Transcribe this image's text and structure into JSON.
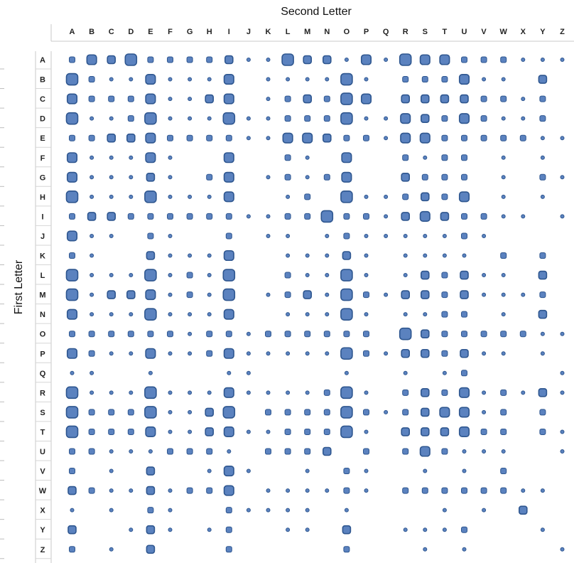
{
  "chart_data": {
    "type": "bubble-matrix",
    "title": "",
    "xlabel": "Second Letter",
    "ylabel": "First Letter",
    "columns": [
      "A",
      "B",
      "C",
      "D",
      "E",
      "F",
      "G",
      "H",
      "I",
      "J",
      "K",
      "L",
      "M",
      "N",
      "O",
      "P",
      "Q",
      "R",
      "S",
      "T",
      "U",
      "V",
      "W",
      "X",
      "Y",
      "Z"
    ],
    "rows": [
      "A",
      "B",
      "C",
      "D",
      "E",
      "F",
      "G",
      "H",
      "I",
      "J",
      "K",
      "L",
      "M",
      "N",
      "O",
      "P",
      "Q",
      "R",
      "S",
      "T",
      "U",
      "V",
      "W",
      "X",
      "Y",
      "Z"
    ],
    "value_scale": "0-5 relative frequency (0 = no marker)",
    "values": [
      [
        2,
        4,
        3,
        5,
        2,
        2,
        2,
        2,
        3,
        1,
        1,
        5,
        3,
        3,
        1,
        4,
        1,
        5,
        4,
        4,
        2,
        2,
        2,
        1,
        1,
        1
      ],
      [
        5,
        2,
        1,
        1,
        4,
        1,
        1,
        1,
        4,
        0,
        1,
        1,
        1,
        1,
        5,
        1,
        0,
        2,
        2,
        2,
        4,
        1,
        1,
        0,
        3,
        0
      ],
      [
        4,
        2,
        2,
        2,
        4,
        1,
        1,
        3,
        4,
        0,
        1,
        2,
        3,
        2,
        5,
        4,
        0,
        3,
        3,
        3,
        3,
        2,
        2,
        1,
        2,
        0
      ],
      [
        5,
        1,
        1,
        2,
        5,
        1,
        1,
        1,
        5,
        1,
        1,
        2,
        2,
        2,
        5,
        1,
        1,
        4,
        3,
        2,
        4,
        2,
        1,
        1,
        2,
        0
      ],
      [
        2,
        2,
        3,
        3,
        4,
        2,
        2,
        2,
        2,
        1,
        1,
        4,
        4,
        3,
        2,
        2,
        1,
        4,
        4,
        2,
        2,
        2,
        2,
        2,
        1,
        1
      ],
      [
        4,
        1,
        1,
        1,
        4,
        1,
        0,
        0,
        4,
        0,
        0,
        2,
        1,
        0,
        4,
        0,
        0,
        2,
        1,
        2,
        2,
        0,
        1,
        0,
        1,
        0
      ],
      [
        4,
        1,
        1,
        1,
        3,
        1,
        0,
        2,
        4,
        0,
        1,
        2,
        1,
        2,
        4,
        0,
        0,
        3,
        2,
        2,
        2,
        0,
        1,
        0,
        2,
        1
      ],
      [
        5,
        1,
        1,
        1,
        5,
        1,
        1,
        1,
        4,
        0,
        0,
        1,
        2,
        0,
        5,
        1,
        1,
        2,
        3,
        2,
        4,
        0,
        1,
        0,
        1,
        0
      ],
      [
        2,
        3,
        3,
        2,
        2,
        2,
        2,
        2,
        2,
        1,
        1,
        2,
        2,
        5,
        2,
        2,
        1,
        3,
        4,
        3,
        2,
        2,
        1,
        1,
        0,
        1
      ],
      [
        4,
        1,
        1,
        0,
        2,
        1,
        0,
        0,
        2,
        0,
        1,
        1,
        0,
        1,
        2,
        1,
        1,
        1,
        1,
        1,
        2,
        1,
        0,
        0,
        0,
        0
      ],
      [
        2,
        1,
        0,
        0,
        3,
        1,
        1,
        1,
        4,
        0,
        0,
        1,
        1,
        1,
        3,
        1,
        0,
        1,
        1,
        1,
        1,
        0,
        2,
        0,
        2,
        0
      ],
      [
        5,
        1,
        1,
        1,
        5,
        1,
        2,
        1,
        5,
        0,
        0,
        2,
        1,
        1,
        5,
        1,
        0,
        1,
        3,
        2,
        3,
        1,
        1,
        0,
        3,
        0
      ],
      [
        5,
        1,
        3,
        3,
        4,
        1,
        2,
        1,
        5,
        0,
        1,
        2,
        3,
        1,
        5,
        2,
        1,
        3,
        3,
        2,
        3,
        1,
        1,
        1,
        2,
        0
      ],
      [
        4,
        1,
        1,
        1,
        5,
        1,
        1,
        1,
        4,
        0,
        0,
        1,
        1,
        1,
        5,
        1,
        0,
        1,
        1,
        2,
        2,
        0,
        1,
        0,
        3,
        0
      ],
      [
        2,
        2,
        2,
        2,
        2,
        2,
        1,
        2,
        2,
        1,
        2,
        2,
        2,
        2,
        2,
        2,
        0,
        5,
        3,
        2,
        2,
        2,
        2,
        2,
        1,
        1
      ],
      [
        4,
        2,
        1,
        1,
        4,
        1,
        1,
        2,
        4,
        1,
        1,
        1,
        1,
        1,
        5,
        2,
        1,
        3,
        3,
        2,
        3,
        1,
        1,
        0,
        1,
        0
      ],
      [
        1,
        1,
        0,
        0,
        1,
        0,
        0,
        0,
        1,
        1,
        0,
        0,
        0,
        0,
        1,
        0,
        0,
        1,
        0,
        1,
        2,
        0,
        0,
        0,
        0,
        1
      ],
      [
        5,
        1,
        1,
        1,
        5,
        1,
        1,
        1,
        4,
        1,
        1,
        1,
        1,
        2,
        5,
        1,
        0,
        2,
        3,
        2,
        4,
        1,
        2,
        1,
        3,
        1
      ],
      [
        5,
        2,
        2,
        2,
        5,
        1,
        1,
        3,
        5,
        0,
        2,
        2,
        2,
        2,
        5,
        2,
        1,
        2,
        3,
        4,
        4,
        1,
        2,
        0,
        2,
        0
      ],
      [
        5,
        2,
        2,
        2,
        4,
        1,
        1,
        3,
        4,
        1,
        1,
        2,
        2,
        2,
        5,
        1,
        0,
        3,
        3,
        3,
        4,
        2,
        2,
        0,
        2,
        1
      ],
      [
        2,
        2,
        1,
        1,
        1,
        2,
        2,
        2,
        1,
        0,
        2,
        2,
        2,
        3,
        0,
        2,
        0,
        2,
        4,
        2,
        1,
        1,
        1,
        0,
        0,
        1
      ],
      [
        2,
        0,
        1,
        0,
        3,
        0,
        0,
        1,
        4,
        1,
        0,
        0,
        1,
        0,
        2,
        1,
        0,
        0,
        1,
        0,
        1,
        0,
        2,
        0,
        0,
        0
      ],
      [
        3,
        2,
        1,
        1,
        3,
        1,
        2,
        2,
        4,
        0,
        1,
        1,
        1,
        1,
        2,
        1,
        0,
        2,
        2,
        2,
        2,
        2,
        2,
        1,
        1,
        0
      ],
      [
        1,
        0,
        1,
        0,
        2,
        1,
        0,
        0,
        2,
        1,
        1,
        1,
        1,
        0,
        1,
        0,
        0,
        0,
        0,
        1,
        0,
        1,
        0,
        3,
        0,
        0
      ],
      [
        3,
        0,
        0,
        1,
        3,
        1,
        0,
        1,
        2,
        0,
        0,
        1,
        1,
        0,
        3,
        0,
        0,
        1,
        1,
        1,
        2,
        0,
        0,
        0,
        1,
        0
      ],
      [
        2,
        0,
        1,
        0,
        3,
        0,
        0,
        0,
        2,
        0,
        0,
        0,
        0,
        0,
        2,
        0,
        0,
        0,
        1,
        0,
        1,
        0,
        0,
        0,
        0,
        1
      ]
    ],
    "grid": false,
    "legend": "none"
  }
}
